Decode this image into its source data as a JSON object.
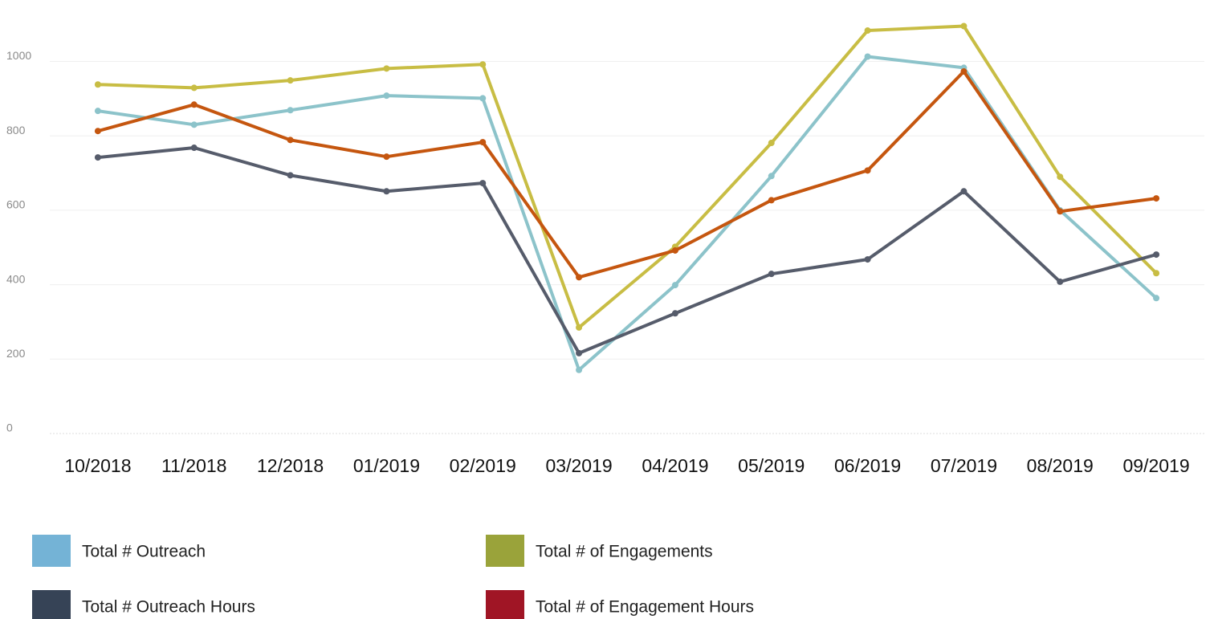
{
  "chart_data": {
    "type": "line",
    "categories": [
      "10/2018",
      "11/2018",
      "12/2018",
      "01/2019",
      "02/2019",
      "03/2019",
      "04/2019",
      "05/2019",
      "06/2019",
      "07/2019",
      "08/2019",
      "09/2019"
    ],
    "series": [
      {
        "name": "Total # Outreach",
        "color": "#8cc3ca",
        "legend_color": "#74b3d6",
        "values": [
          867,
          830,
          869,
          908,
          901,
          171,
          399,
          692,
          1013,
          983,
          600,
          364
        ]
      },
      {
        "name": "Total # of Engagements",
        "color": "#c8bd44",
        "legend_color": "#9aa33a",
        "values": [
          938,
          929,
          949,
          981,
          992,
          285,
          502,
          781,
          1083,
          1095,
          690,
          431
        ]
      },
      {
        "name": "Total # Outreach Hours",
        "color": "#565c6b",
        "legend_color": "#364356",
        "values": [
          742,
          768,
          694,
          651,
          673,
          216,
          323,
          429,
          468,
          651,
          408,
          481
        ]
      },
      {
        "name": "Total # of Engagement Hours",
        "color": "#c5560f",
        "legend_color": "#a01525",
        "values": [
          813,
          884,
          789,
          744,
          783,
          420,
          492,
          627,
          707,
          973,
          597,
          632
        ]
      }
    ],
    "ylim": [
      0,
      1150
    ],
    "yticks": [
      0,
      200,
      400,
      600,
      800,
      1000
    ],
    "grid": true
  }
}
